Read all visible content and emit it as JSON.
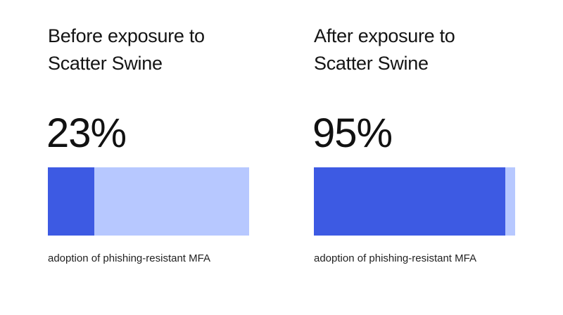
{
  "chart_data": [
    {
      "type": "bar",
      "title": [
        "Before exposure to",
        "Scatter Swine"
      ],
      "value_label": "23%",
      "value": 23,
      "max": 100,
      "caption": "adoption of phishing-resistant MFA",
      "colors": {
        "filled": "#3d5ae3",
        "remaining": "#b7c8ff"
      }
    },
    {
      "type": "bar",
      "title": [
        "After exposure to",
        "Scatter Swine"
      ],
      "value_label": "95%",
      "value": 95,
      "max": 100,
      "caption": "adoption of phishing-resistant MFA",
      "colors": {
        "filled": "#3d5ae3",
        "remaining": "#b7c8ff"
      }
    }
  ]
}
